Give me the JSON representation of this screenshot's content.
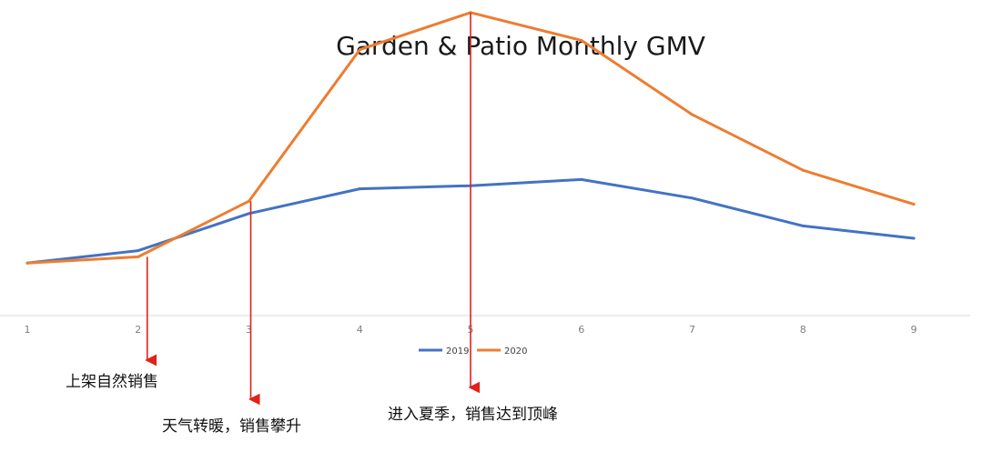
{
  "chart_data": {
    "type": "line",
    "title": "Garden & Patio Monthly GMV",
    "xlabel": "",
    "ylabel": "",
    "x": [
      1,
      2,
      3,
      4,
      5,
      6,
      7,
      8,
      9
    ],
    "ylim": [
      0,
      100
    ],
    "grid": false,
    "legend_position": "bottom",
    "series": [
      {
        "name": "2019",
        "color": "#4472C4",
        "values": [
          17,
          21,
          33,
          41,
          42,
          44,
          38,
          29,
          25
        ]
      },
      {
        "name": "2020",
        "color": "#ED7D31",
        "values": [
          17,
          19,
          37,
          86,
          98,
          89,
          65,
          47,
          36
        ]
      }
    ],
    "annotations": [
      {
        "x": 2,
        "text": "上架自然销售",
        "color": "#E0211C"
      },
      {
        "x": 3,
        "text": "天气转暖，销售攀升",
        "color": "#E0211C"
      },
      {
        "x": 5,
        "text": "进入夏季，销售达到顶峰",
        "color": "#E0211C"
      }
    ]
  }
}
